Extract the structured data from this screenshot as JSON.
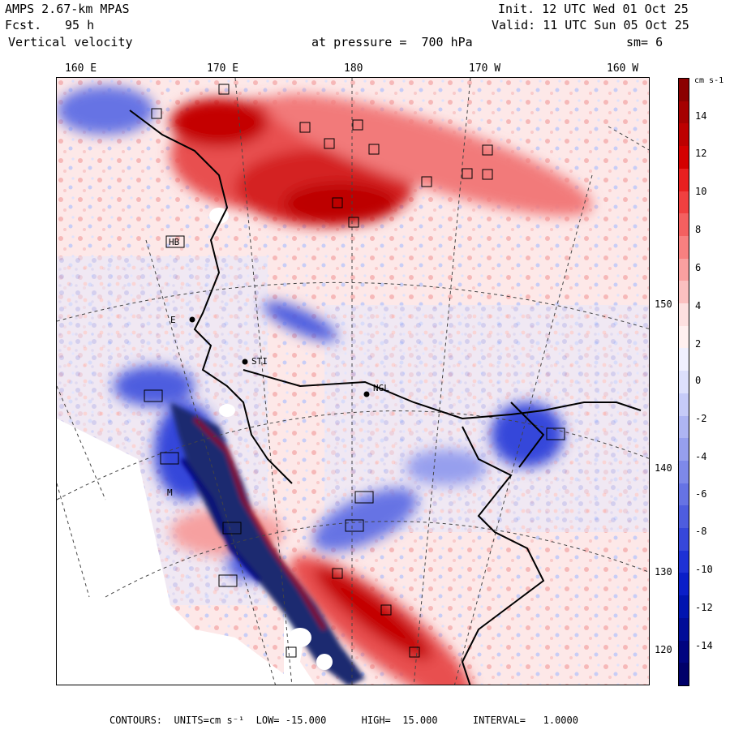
{
  "header": {
    "model": "AMPS 2.67-km MPAS",
    "fcst_label": "Fcst.",
    "fcst_value": "95 h",
    "field": "Vertical velocity",
    "init": "Init. 12 UTC Wed 01 Oct 25",
    "valid": "Valid: 11 UTC Sun 05 Oct 25",
    "pressure": "at pressure =  700 hPa",
    "smoothing": "sm= 6"
  },
  "lon_labels": [
    "160 E",
    "170 E",
    "180",
    "170 W",
    "160 W"
  ],
  "lat_labels": [
    "150 W",
    "140 W",
    "130 W",
    "120 W"
  ],
  "stations": [
    "STI",
    "NGL",
    "E",
    "HB",
    "M"
  ],
  "colorbar": {
    "units": "cm s-1",
    "ticks": [
      "14",
      "12",
      "10",
      "8",
      "6",
      "4",
      "2",
      "0",
      "-2",
      "-4",
      "-6",
      "-8",
      "-10",
      "-12",
      "-14"
    ],
    "colors": [
      "#8b0000",
      "#a50000",
      "#bd0000",
      "#d40000",
      "#e82020",
      "#f04040",
      "#f46060",
      "#f88080",
      "#f9a0a0",
      "#fbc0c0",
      "#fde0e0",
      "#fff0f0",
      "#f0f0ff",
      "#dde0fc",
      "#c6cbf8",
      "#aeb5f3",
      "#969fee",
      "#7e89e9",
      "#6673e4",
      "#4e5ddf",
      "#3647da",
      "#1e31d5",
      "#0a1ec8",
      "#0014b0",
      "#000c98",
      "#000480",
      "#00006a"
    ]
  },
  "footer": {
    "text": "CONTOURS:  UNITS=cm s⁻¹  LOW= -15.000      HIGH=  15.000      INTERVAL=   1.0000"
  }
}
